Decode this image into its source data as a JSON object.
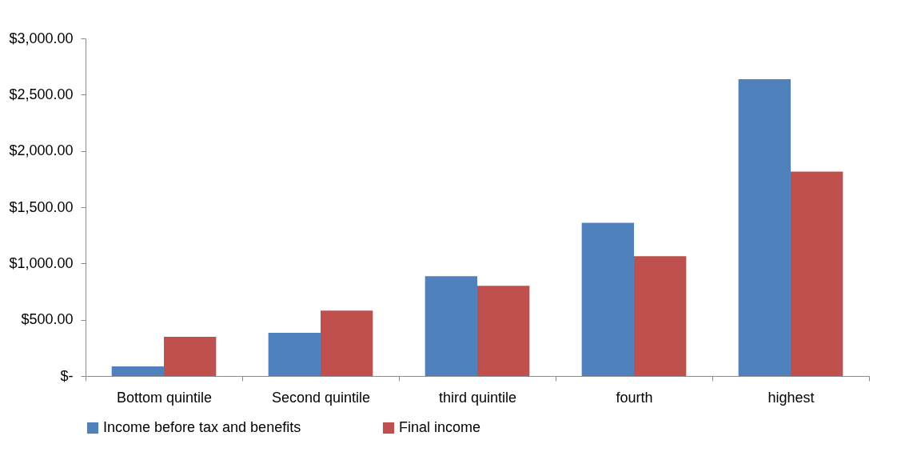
{
  "chart_data": {
    "type": "bar",
    "categories": [
      "Bottom quintile",
      "Second quintile",
      "third quintile",
      "fourth",
      "highest"
    ],
    "series": [
      {
        "name": "Income before tax and benefits",
        "color": "#4f81bd",
        "values": [
          85,
          383,
          887,
          1362,
          2638
        ]
      },
      {
        "name": "Final income",
        "color": "#c0504d",
        "values": [
          348,
          582,
          801,
          1064,
          1816
        ]
      }
    ],
    "ylim": [
      0,
      3000
    ],
    "yticks": [
      {
        "value": 0,
        "label": "$-"
      },
      {
        "value": 500,
        "label": "$500.00"
      },
      {
        "value": 1000,
        "label": "$1,000.00"
      },
      {
        "value": 1500,
        "label": "$1,500.00"
      },
      {
        "value": 2000,
        "label": "$2,000.00"
      },
      {
        "value": 2500,
        "label": "$2,500.00"
      },
      {
        "value": 3000,
        "label": "$3,000.00"
      }
    ],
    "grid": false,
    "legend": "bottom"
  }
}
